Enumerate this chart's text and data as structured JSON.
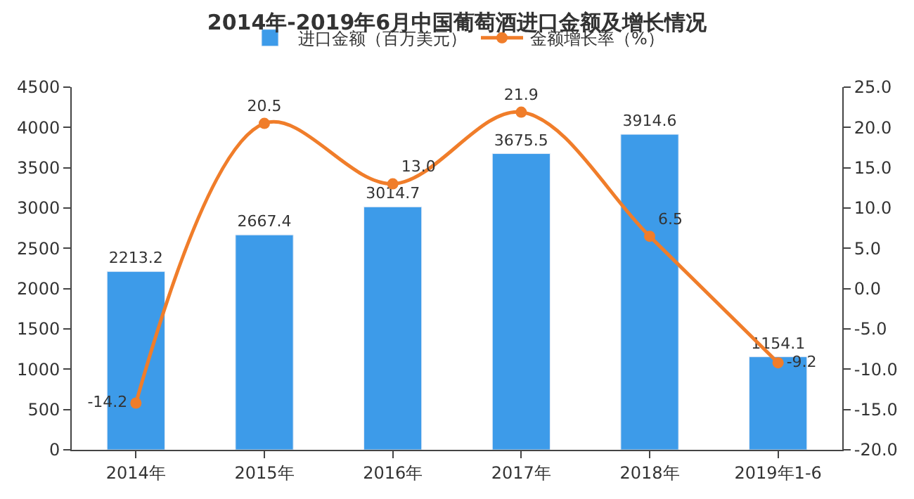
{
  "chart_data": {
    "type": "bar",
    "title": "2014年-2019年6月中国葡萄酒进口金额及增长情况",
    "categories": [
      "2014年",
      "2015年",
      "2016年",
      "2017年",
      "2018年",
      "2019年1-6"
    ],
    "series": [
      {
        "name": "进口金额（百万美元）",
        "color": "#3d9be9",
        "values": [
          2213.2,
          2667.4,
          3014.7,
          3675.5,
          3914.6,
          1154.1
        ],
        "value_labels": [
          "2213.2",
          "2667.4",
          "3014.7",
          "3675.5",
          "3914.6",
          "1154.1"
        ]
      },
      {
        "name": "金额增长率（%）",
        "type": "line",
        "axis": "y2",
        "color": "#f07d2a",
        "marker": "circle",
        "values": [
          -14.2,
          20.5,
          13.0,
          21.9,
          6.5,
          -9.2
        ],
        "value_labels": [
          "-14.2",
          "20.5",
          "13.0",
          "21.9",
          "6.5",
          "-9.2"
        ]
      }
    ],
    "ylim": [
      0,
      4500
    ],
    "yticks": [
      0,
      500,
      1000,
      1500,
      2000,
      2500,
      3000,
      3500,
      4000,
      4500
    ],
    "y2lim": [
      -20,
      25
    ],
    "y2ticks": [
      {
        "value": -20,
        "label": "-20.0"
      },
      {
        "value": -15,
        "label": "-15.0"
      },
      {
        "value": -10,
        "label": "-10.0"
      },
      {
        "value": -5,
        "label": "-5.0"
      },
      {
        "value": 0,
        "label": "0.0"
      },
      {
        "value": 5,
        "label": "5.0"
      },
      {
        "value": 10,
        "label": "10.0"
      },
      {
        "value": 15,
        "label": "15.0"
      },
      {
        "value": 20,
        "label": "20.0"
      },
      {
        "value": 25,
        "label": "25.0"
      }
    ],
    "legend": "top"
  }
}
